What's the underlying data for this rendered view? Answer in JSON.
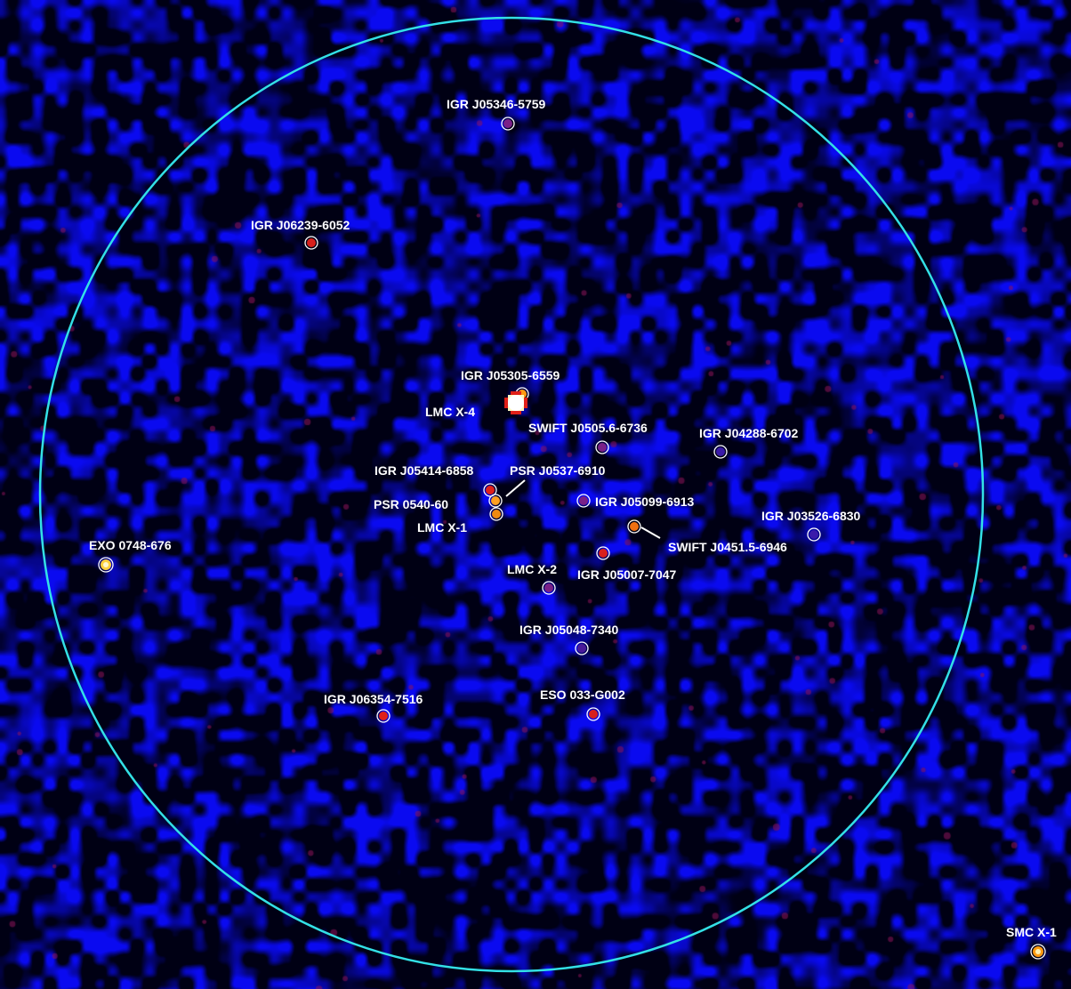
{
  "image": {
    "description_kind": "sky-significance-map",
    "background_color": "#000000",
    "noise_color": "#1a1aff",
    "field_circle_color": "#33e0e6"
  },
  "sources": [
    {
      "name": "IGR J05346-5759",
      "intensity": "faint"
    },
    {
      "name": "IGR J06239-6052",
      "intensity": "medium"
    },
    {
      "name": "IGR J05305-6559",
      "intensity": "bright"
    },
    {
      "name": "LMC X-4",
      "intensity": "saturated"
    },
    {
      "name": "SWIFT J0505.6-6736",
      "intensity": "faint"
    },
    {
      "name": "IGR J04288-6702",
      "intensity": "faint"
    },
    {
      "name": "IGR J05414-6858",
      "intensity": "medium"
    },
    {
      "name": "PSR J0537-6910",
      "intensity": "bright"
    },
    {
      "name": "PSR 0540-60",
      "intensity": "bright"
    },
    {
      "name": "LMC X-1",
      "intensity": "bright"
    },
    {
      "name": "IGR J05099-6913",
      "intensity": "faint"
    },
    {
      "name": "SWIFT J0451.5-6946",
      "intensity": "bright"
    },
    {
      "name": "IGR J03526-6830",
      "intensity": "faint"
    },
    {
      "name": "EXO 0748-676",
      "intensity": "saturated"
    },
    {
      "name": "IGR J05007-7047",
      "intensity": "medium"
    },
    {
      "name": "LMC X-2",
      "intensity": "faint"
    },
    {
      "name": "IGR J05048-7340",
      "intensity": "faint"
    },
    {
      "name": "IGR J06354-7516",
      "intensity": "medium"
    },
    {
      "name": "ESO 033-G002",
      "intensity": "medium"
    },
    {
      "name": "SMC X-1",
      "intensity": "bright"
    }
  ]
}
